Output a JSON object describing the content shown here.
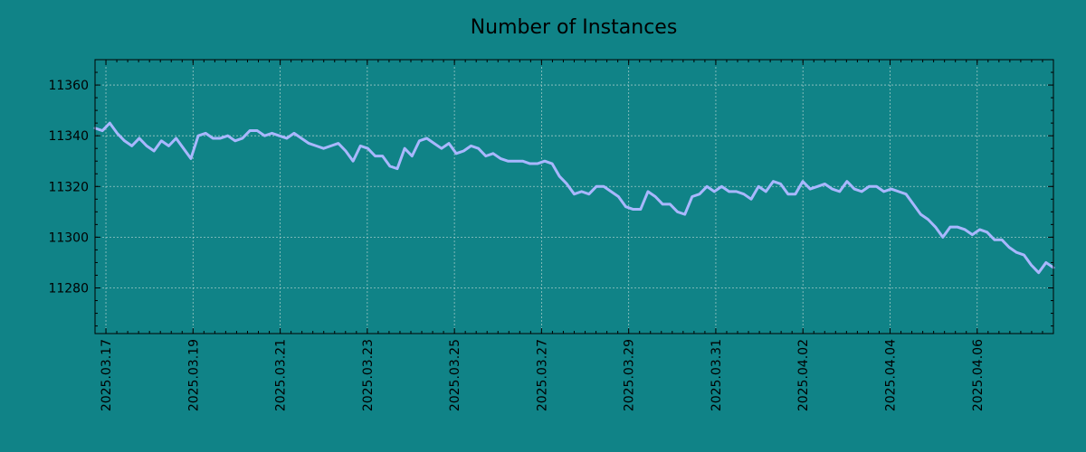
{
  "chart_data": {
    "type": "line",
    "title": "Number of Instances",
    "xlabel": "",
    "ylabel": "",
    "x_start": "2025-03-16T18:00",
    "x_end": "2025-04-07T18:00",
    "xlim": [
      "2025-03-16T18:00",
      "2025-04-07T18:00"
    ],
    "ylim": [
      11262,
      11370
    ],
    "grid": true,
    "x_ticks": [
      "2025.03.17",
      "2025.03.19",
      "2025.03.21",
      "2025.03.23",
      "2025.03.25",
      "2025.03.27",
      "2025.03.29",
      "2025.03.31",
      "2025.04.02",
      "2025.04.04",
      "2025.04.06"
    ],
    "y_ticks": [
      11280,
      11300,
      11320,
      11340,
      11360
    ],
    "series": [
      {
        "color": "#a9b7ff",
        "values": [
          11343,
          11342,
          11345,
          11341,
          11338,
          11336,
          11339,
          11336,
          11334,
          11338,
          11336,
          11339,
          11335,
          11331,
          11340,
          11341,
          11339,
          11339,
          11340,
          11338,
          11339,
          11342,
          11342,
          11340,
          11341,
          11340,
          11339,
          11341,
          11339,
          11337,
          11336,
          11335,
          11336,
          11337,
          11334,
          11330,
          11336,
          11335,
          11332,
          11332,
          11328,
          11327,
          11335,
          11332,
          11338,
          11339,
          11337,
          11335,
          11337,
          11333,
          11334,
          11336,
          11335,
          11332,
          11333,
          11331,
          11330,
          11330,
          11330,
          11329,
          11329,
          11330,
          11329,
          11324,
          11321,
          11317,
          11318,
          11317,
          11320,
          11320,
          11318,
          11316,
          11312,
          11311,
          11311,
          11318,
          11316,
          11313,
          11313,
          11310,
          11309,
          11316,
          11317,
          11320,
          11318,
          11320,
          11318,
          11318,
          11317,
          11315,
          11320,
          11318,
          11322,
          11321,
          11317,
          11317,
          11322,
          11319,
          11320,
          11321,
          11319,
          11318,
          11322,
          11319,
          11318,
          11320,
          11320,
          11318,
          11319,
          11318,
          11317,
          11313,
          11309,
          11307,
          11304,
          11300,
          11304,
          11304,
          11303,
          11301,
          11303,
          11302,
          11299,
          11299,
          11296,
          11294,
          11293,
          11289,
          11286,
          11290,
          11288
        ]
      }
    ]
  },
  "colors": {
    "background": "#108387",
    "plot_background": "#108387",
    "line": "#a9b7ff",
    "axis": "#000000",
    "grid": "#9cc7c5"
  }
}
